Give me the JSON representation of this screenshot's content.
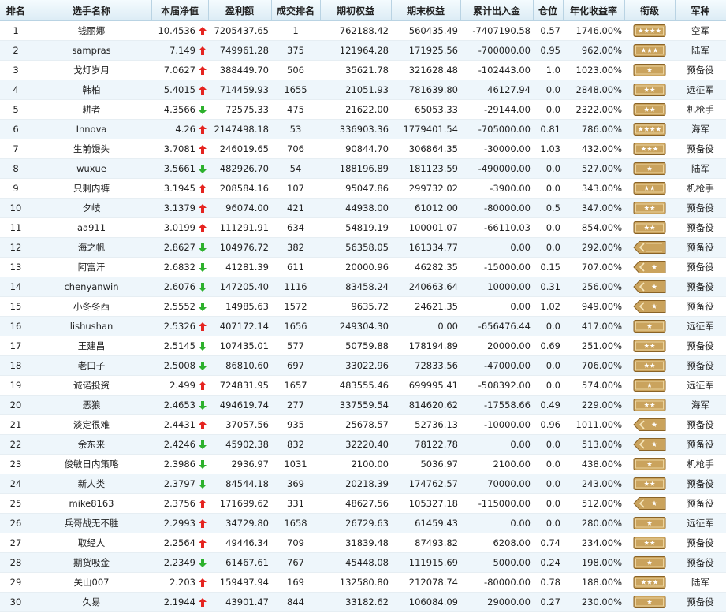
{
  "headers": [
    "排名",
    "选手名称",
    "本届净值",
    "盈利额",
    "成交排名",
    "期初权益",
    "期末权益",
    "累计出入金",
    "仓位",
    "年化收益率",
    "衔级",
    "军种"
  ],
  "colors": {
    "up": "#e52420",
    "down": "#2db12d",
    "badge_bg": "#caa35d",
    "badge_border": "#8a6326",
    "badge_star": "#ffffff"
  },
  "rows": [
    {
      "rank": "1",
      "name": "钱丽娜",
      "nav": "10.4536",
      "trend": "up",
      "profit": "7205437.65",
      "trade_rank": "1",
      "start": "762188.42",
      "end": "560435.49",
      "flow": "-7407190.58",
      "pos": "0.57",
      "annual": "1746.00%",
      "badge": "stars-4",
      "branch": "空军"
    },
    {
      "rank": "2",
      "name": "sampras",
      "nav": "7.149",
      "trend": "up",
      "profit": "749961.28",
      "trade_rank": "375",
      "start": "121964.28",
      "end": "171925.56",
      "flow": "-700000.00",
      "pos": "0.95",
      "annual": "962.00%",
      "badge": "stars-3",
      "branch": "陆军"
    },
    {
      "rank": "3",
      "name": "戈灯岁月",
      "nav": "7.0627",
      "trend": "up",
      "profit": "388449.70",
      "trade_rank": "506",
      "start": "35621.78",
      "end": "321628.48",
      "flow": "-102443.00",
      "pos": "1.0",
      "annual": "1023.00%",
      "badge": "stars-1",
      "branch": "预备役"
    },
    {
      "rank": "4",
      "name": "韩柏",
      "nav": "5.4015",
      "trend": "up",
      "profit": "714459.93",
      "trade_rank": "1655",
      "start": "21051.93",
      "end": "781639.80",
      "flow": "46127.94",
      "pos": "0.0",
      "annual": "2848.00%",
      "badge": "stars-2",
      "branch": "远征军"
    },
    {
      "rank": "5",
      "name": "耕者",
      "nav": "4.3566",
      "trend": "down",
      "profit": "72575.33",
      "trade_rank": "475",
      "start": "21622.00",
      "end": "65053.33",
      "flow": "-29144.00",
      "pos": "0.0",
      "annual": "2322.00%",
      "badge": "stars-2",
      "branch": "机枪手"
    },
    {
      "rank": "6",
      "name": "Innova",
      "nav": "4.26",
      "trend": "up",
      "profit": "2147498.18",
      "trade_rank": "53",
      "start": "336903.36",
      "end": "1779401.54",
      "flow": "-705000.00",
      "pos": "0.81",
      "annual": "786.00%",
      "badge": "stars-4",
      "branch": "海军"
    },
    {
      "rank": "7",
      "name": "生前馒头",
      "nav": "3.7081",
      "trend": "up",
      "profit": "246019.65",
      "trade_rank": "706",
      "start": "90844.70",
      "end": "306864.35",
      "flow": "-30000.00",
      "pos": "1.03",
      "annual": "432.00%",
      "badge": "stars-3",
      "branch": "预备役"
    },
    {
      "rank": "8",
      "name": "wuxue",
      "nav": "3.5661",
      "trend": "down",
      "profit": "482926.70",
      "trade_rank": "54",
      "start": "188196.89",
      "end": "181123.59",
      "flow": "-490000.00",
      "pos": "0.0",
      "annual": "527.00%",
      "badge": "stars-1",
      "branch": "陆军"
    },
    {
      "rank": "9",
      "name": "只剩内裤",
      "nav": "3.1945",
      "trend": "up",
      "profit": "208584.16",
      "trade_rank": "107",
      "start": "95047.86",
      "end": "299732.02",
      "flow": "-3900.00",
      "pos": "0.0",
      "annual": "343.00%",
      "badge": "stars-2",
      "branch": "机枪手"
    },
    {
      "rank": "10",
      "name": "夕岐",
      "nav": "3.1379",
      "trend": "up",
      "profit": "96074.00",
      "trade_rank": "421",
      "start": "44938.00",
      "end": "61012.00",
      "flow": "-80000.00",
      "pos": "0.5",
      "annual": "347.00%",
      "badge": "stars-2",
      "branch": "预备役"
    },
    {
      "rank": "11",
      "name": "aa911",
      "nav": "3.0199",
      "trend": "up",
      "profit": "111291.91",
      "trade_rank": "634",
      "start": "54819.19",
      "end": "100001.07",
      "flow": "-66110.03",
      "pos": "0.0",
      "annual": "854.00%",
      "badge": "stars-2",
      "branch": "预备役"
    },
    {
      "rank": "12",
      "name": "海之帆",
      "nav": "2.8627",
      "trend": "down",
      "profit": "104976.72",
      "trade_rank": "382",
      "start": "56358.05",
      "end": "161334.77",
      "flow": "0.00",
      "pos": "0.0",
      "annual": "292.00%",
      "badge": "chevron-1",
      "branch": "预备役"
    },
    {
      "rank": "13",
      "name": "阿富汗",
      "nav": "2.6832",
      "trend": "down",
      "profit": "41281.39",
      "trade_rank": "611",
      "start": "20000.96",
      "end": "46282.35",
      "flow": "-15000.00",
      "pos": "0.15",
      "annual": "707.00%",
      "badge": "chevron-star",
      "branch": "预备役"
    },
    {
      "rank": "14",
      "name": "chenyanwin",
      "nav": "2.6076",
      "trend": "down",
      "profit": "147205.40",
      "trade_rank": "1116",
      "start": "83458.24",
      "end": "240663.64",
      "flow": "10000.00",
      "pos": "0.31",
      "annual": "256.00%",
      "badge": "chevron-star",
      "branch": "预备役"
    },
    {
      "rank": "15",
      "name": "小冬冬西",
      "nav": "2.5552",
      "trend": "down",
      "profit": "14985.63",
      "trade_rank": "1572",
      "start": "9635.72",
      "end": "24621.35",
      "flow": "0.00",
      "pos": "1.02",
      "annual": "949.00%",
      "badge": "chevron-star",
      "branch": "预备役"
    },
    {
      "rank": "16",
      "name": "lishushan",
      "nav": "2.5326",
      "trend": "up",
      "profit": "407172.14",
      "trade_rank": "1656",
      "start": "249304.30",
      "end": "0.00",
      "flow": "-656476.44",
      "pos": "0.0",
      "annual": "417.00%",
      "badge": "stars-1",
      "branch": "远征军"
    },
    {
      "rank": "17",
      "name": "王建昌",
      "nav": "2.5145",
      "trend": "down",
      "profit": "107435.01",
      "trade_rank": "577",
      "start": "50759.88",
      "end": "178194.89",
      "flow": "20000.00",
      "pos": "0.69",
      "annual": "251.00%",
      "badge": "stars-2",
      "branch": "预备役"
    },
    {
      "rank": "18",
      "name": "老口子",
      "nav": "2.5008",
      "trend": "down",
      "profit": "86810.60",
      "trade_rank": "697",
      "start": "33022.96",
      "end": "72833.56",
      "flow": "-47000.00",
      "pos": "0.0",
      "annual": "706.00%",
      "badge": "stars-2",
      "branch": "预备役"
    },
    {
      "rank": "19",
      "name": "诚诺投资",
      "nav": "2.499",
      "trend": "up",
      "profit": "724831.95",
      "trade_rank": "1657",
      "start": "483555.46",
      "end": "699995.41",
      "flow": "-508392.00",
      "pos": "0.0",
      "annual": "574.00%",
      "badge": "stars-1",
      "branch": "远征军"
    },
    {
      "rank": "20",
      "name": "恶狼",
      "nav": "2.4653",
      "trend": "down",
      "profit": "494619.74",
      "trade_rank": "277",
      "start": "337559.54",
      "end": "814620.62",
      "flow": "-17558.66",
      "pos": "0.49",
      "annual": "229.00%",
      "badge": "stars-2",
      "branch": "海军"
    },
    {
      "rank": "21",
      "name": "淡定很难",
      "nav": "2.4431",
      "trend": "up",
      "profit": "37057.56",
      "trade_rank": "935",
      "start": "25678.57",
      "end": "52736.13",
      "flow": "-10000.00",
      "pos": "0.96",
      "annual": "1011.00%",
      "badge": "chevron-star",
      "branch": "预备役"
    },
    {
      "rank": "22",
      "name": "余东来",
      "nav": "2.4246",
      "trend": "down",
      "profit": "45902.38",
      "trade_rank": "832",
      "start": "32220.40",
      "end": "78122.78",
      "flow": "0.00",
      "pos": "0.0",
      "annual": "513.00%",
      "badge": "chevron-star",
      "branch": "预备役"
    },
    {
      "rank": "23",
      "name": "俊敏日内策略",
      "nav": "2.3986",
      "trend": "down",
      "profit": "2936.97",
      "trade_rank": "1031",
      "start": "2100.00",
      "end": "5036.97",
      "flow": "2100.00",
      "pos": "0.0",
      "annual": "438.00%",
      "badge": "stars-1",
      "branch": "机枪手"
    },
    {
      "rank": "24",
      "name": "新人类",
      "nav": "2.3797",
      "trend": "down",
      "profit": "84544.18",
      "trade_rank": "369",
      "start": "20218.39",
      "end": "174762.57",
      "flow": "70000.00",
      "pos": "0.0",
      "annual": "243.00%",
      "badge": "stars-2",
      "branch": "预备役"
    },
    {
      "rank": "25",
      "name": "mike8163",
      "nav": "2.3756",
      "trend": "up",
      "profit": "171699.62",
      "trade_rank": "331",
      "start": "48627.56",
      "end": "105327.18",
      "flow": "-115000.00",
      "pos": "0.0",
      "annual": "512.00%",
      "badge": "chevron-star",
      "branch": "预备役"
    },
    {
      "rank": "26",
      "name": "兵哥战无不胜",
      "nav": "2.2993",
      "trend": "up",
      "profit": "34729.80",
      "trade_rank": "1658",
      "start": "26729.63",
      "end": "61459.43",
      "flow": "0.00",
      "pos": "0.0",
      "annual": "280.00%",
      "badge": "stars-1",
      "branch": "远征军"
    },
    {
      "rank": "27",
      "name": "取经人",
      "nav": "2.2564",
      "trend": "up",
      "profit": "49446.34",
      "trade_rank": "709",
      "start": "31839.48",
      "end": "87493.82",
      "flow": "6208.00",
      "pos": "0.74",
      "annual": "234.00%",
      "badge": "stars-2",
      "branch": "预备役"
    },
    {
      "rank": "28",
      "name": "期货吸金",
      "nav": "2.2349",
      "trend": "down",
      "profit": "61467.61",
      "trade_rank": "767",
      "start": "45448.08",
      "end": "111915.69",
      "flow": "5000.00",
      "pos": "0.24",
      "annual": "198.00%",
      "badge": "stars-1",
      "branch": "预备役"
    },
    {
      "rank": "29",
      "name": "关山007",
      "nav": "2.203",
      "trend": "up",
      "profit": "159497.94",
      "trade_rank": "169",
      "start": "132580.80",
      "end": "212078.74",
      "flow": "-80000.00",
      "pos": "0.78",
      "annual": "188.00%",
      "badge": "stars-3",
      "branch": "陆军"
    },
    {
      "rank": "30",
      "name": "久易",
      "nav": "2.1944",
      "trend": "up",
      "profit": "43901.47",
      "trade_rank": "844",
      "start": "33182.62",
      "end": "106084.09",
      "flow": "29000.00",
      "pos": "0.27",
      "annual": "230.00%",
      "badge": "stars-1",
      "branch": "预备役"
    }
  ]
}
